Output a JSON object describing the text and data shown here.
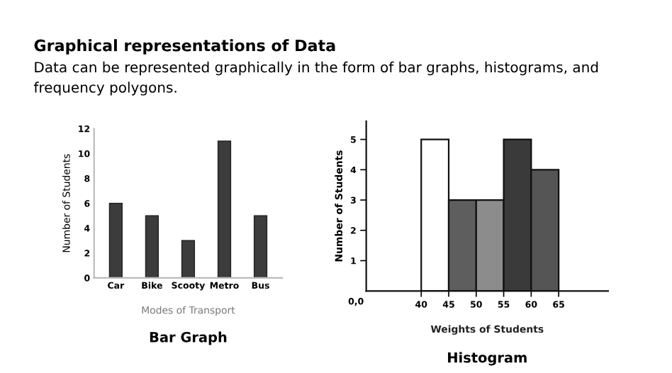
{
  "chart_data": [
    {
      "type": "bar",
      "title": "Graphical representations of Data",
      "subtitle": "Data can be represented graphically in the form of bar graphs, histograms, and frequency polygons.",
      "categories": [
        "Car",
        "Bike",
        "Scooty",
        "Metro",
        "Bus"
      ],
      "values": [
        6,
        5,
        3,
        11,
        5
      ],
      "color": "#3c3c3c",
      "xlabel": "Modes of Transport",
      "ylabel": "Number of Students",
      "ylim": [
        0,
        12
      ],
      "yticks": [
        0,
        2,
        4,
        6,
        8,
        10,
        12
      ],
      "grid": false,
      "legend": false,
      "annotations": [
        "Bar Graph"
      ]
    },
    {
      "type": "histogram",
      "bins": [
        40,
        45,
        50,
        55,
        60,
        65
      ],
      "values": [
        5,
        3,
        3,
        5,
        4
      ],
      "colors": [
        "#ffffff",
        "#5e5e5e",
        "#8c8c8c",
        "#3a3a3a",
        "#555555"
      ],
      "xlabel": "Weights of Students",
      "ylabel": "Number of Students",
      "xlim": [
        30,
        74
      ],
      "ylim": [
        0,
        5.6
      ],
      "xticks": [
        40,
        45,
        50,
        55,
        60,
        65
      ],
      "yticks": [
        1,
        2,
        3,
        4,
        5
      ],
      "grid": false,
      "legend": false,
      "annotations": [
        "Histogram",
        "0,0"
      ]
    }
  ]
}
